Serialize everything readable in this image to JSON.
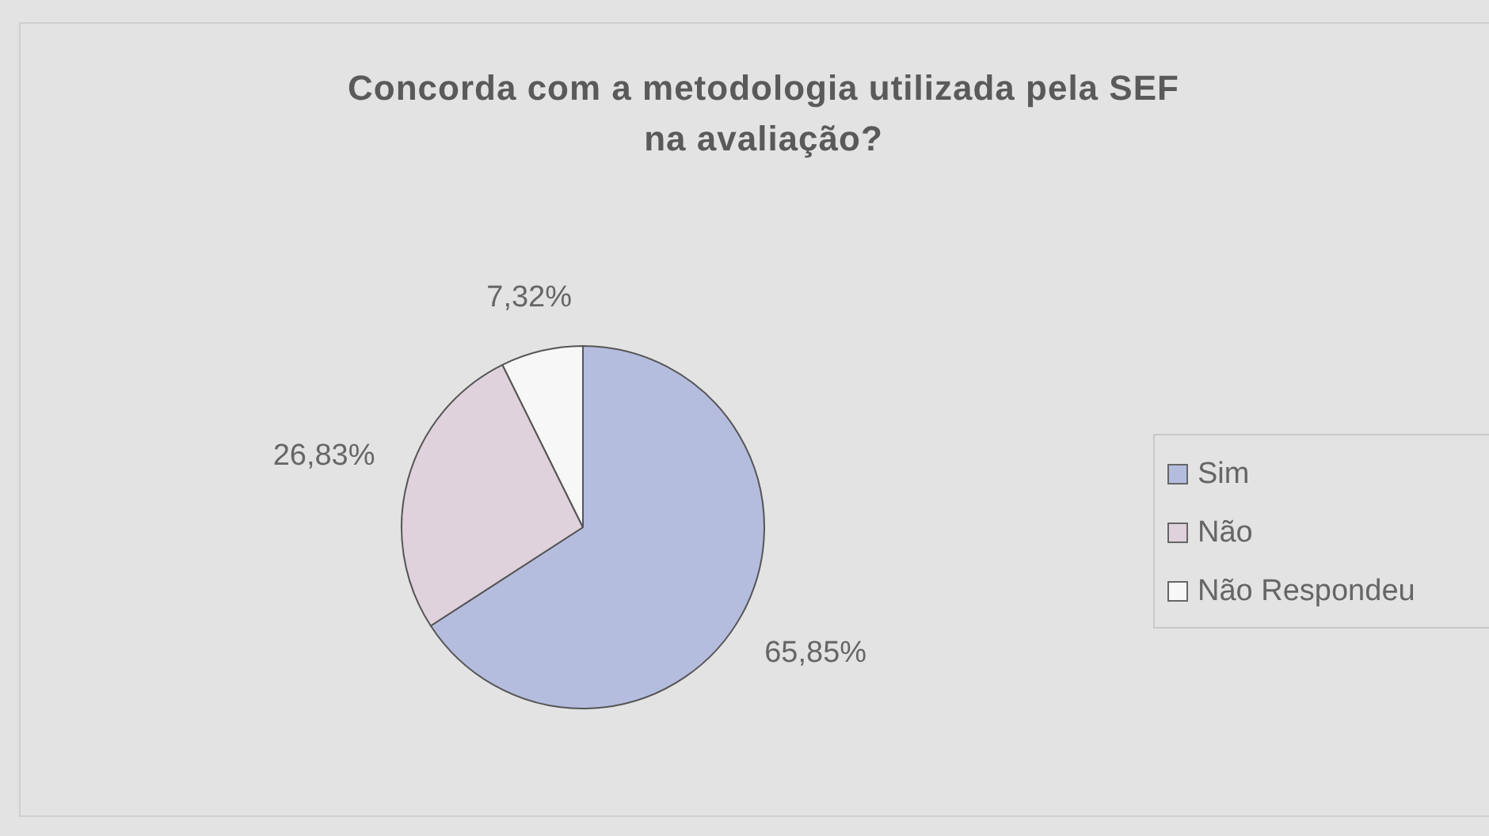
{
  "chart_data": {
    "type": "pie",
    "title": "Concorda com a metodologia utilizada pela SEF\nna avaliação?",
    "categories": [
      "Sim",
      "Não",
      "Não Respondeu"
    ],
    "values": [
      65.85,
      26.83,
      7.32
    ],
    "colors": [
      "#b5bddf",
      "#dfd2dc",
      "#f7f7f7"
    ],
    "value_labels": [
      "65,85%",
      "26,83%",
      "7,32%"
    ],
    "legend": "right"
  }
}
